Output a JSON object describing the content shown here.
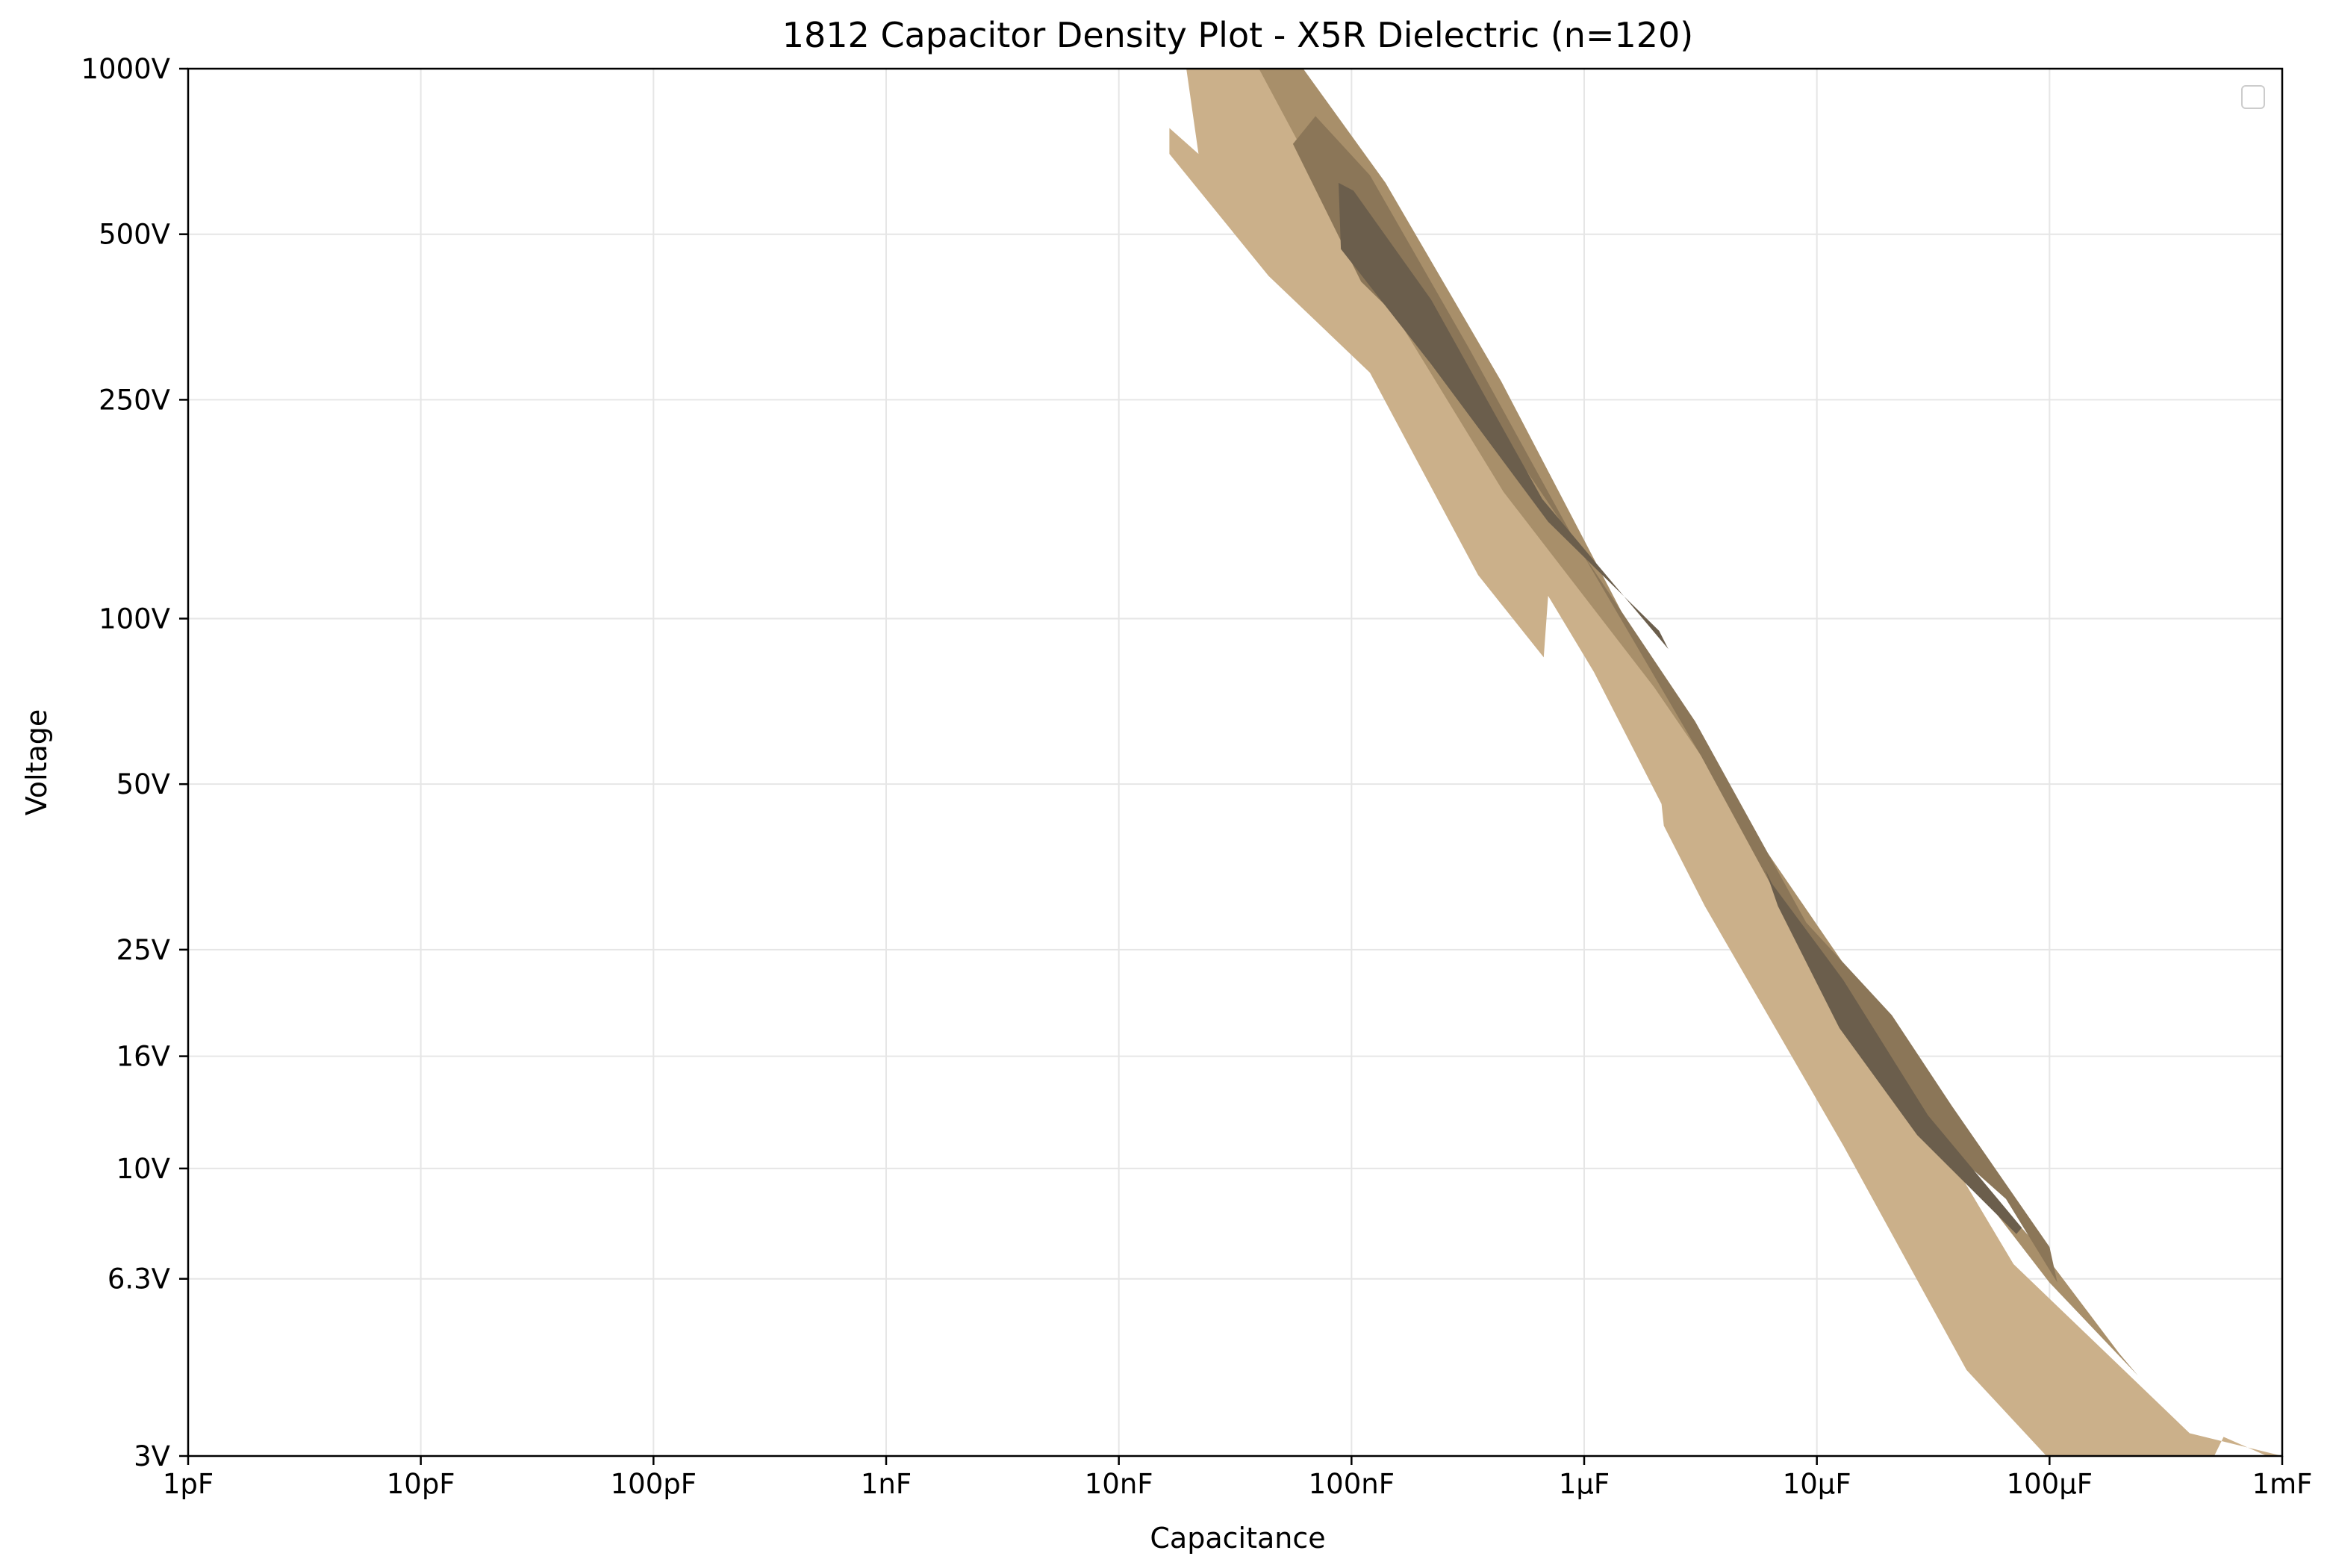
{
  "chart_data": {
    "type": "contour",
    "title": "1812 Capacitor Density Plot - X5R Dielectric (n=120)",
    "xlabel": "Capacitance",
    "ylabel": "Voltage",
    "x_scale": "log",
    "y_scale": "log",
    "x_unit": "F",
    "y_unit": "V",
    "xlim": [
      1e-12,
      0.001
    ],
    "ylim": [
      3,
      1000
    ],
    "x_ticks": [
      {
        "value": 1e-12,
        "label": "1pF"
      },
      {
        "value": 1e-11,
        "label": "10pF"
      },
      {
        "value": 1e-10,
        "label": "100pF"
      },
      {
        "value": 1e-09,
        "label": "1nF"
      },
      {
        "value": 1e-08,
        "label": "10nF"
      },
      {
        "value": 1e-07,
        "label": "100nF"
      },
      {
        "value": 1e-06,
        "label": "1µF"
      },
      {
        "value": 1e-05,
        "label": "10µF"
      },
      {
        "value": 0.0001,
        "label": "100µF"
      },
      {
        "value": 0.001,
        "label": "1mF"
      }
    ],
    "y_ticks": [
      {
        "value": 3,
        "label": "3V"
      },
      {
        "value": 6.3,
        "label": "6.3V"
      },
      {
        "value": 10,
        "label": "10V"
      },
      {
        "value": 16,
        "label": "16V"
      },
      {
        "value": 25,
        "label": "25V"
      },
      {
        "value": 50,
        "label": "50V"
      },
      {
        "value": 100,
        "label": "100V"
      },
      {
        "value": 250,
        "label": "250V"
      },
      {
        "value": 500,
        "label": "500V"
      },
      {
        "value": 1000,
        "label": "1000V"
      }
    ],
    "grid": true,
    "legend": {
      "position": "upper right",
      "entries": []
    },
    "level_colors": [
      "#cbb08a",
      "#a88f6a",
      "#8b7658",
      "#6b5e4c"
    ],
    "density_regions": [
      {
        "level": 1,
        "boundary": [
          [
            1.65e-08,
            780
          ],
          [
            2.2e-08,
            700
          ],
          [
            1.95e-08,
            1000
          ],
          [
            4.4e-08,
            1000
          ],
          [
            9e-08,
            760
          ],
          [
            2.6e-07,
            370
          ],
          [
            1e-06,
            130
          ],
          [
            4e-06,
            50
          ],
          [
            1.5e-05,
            20
          ],
          [
            7e-05,
            6.7
          ],
          [
            0.0004,
            3.3
          ],
          [
            0.001,
            3
          ],
          [
            0.00086,
            3
          ],
          [
            0.00056,
            3.25
          ],
          [
            0.00051,
            3
          ],
          [
            9.7e-05,
            3
          ],
          [
            4.4e-05,
            4.3
          ],
          [
            1.3e-05,
            11
          ],
          [
            3.3e-06,
            30
          ],
          [
            2.2e-06,
            42
          ],
          [
            2.15e-06,
            46
          ],
          [
            1.1e-06,
            80
          ],
          [
            7e-07,
            110
          ],
          [
            6.7e-07,
            85
          ],
          [
            3.5e-07,
            120
          ],
          [
            1.2e-07,
            280
          ],
          [
            4.4e-08,
            420
          ],
          [
            1.65e-08,
            700
          ]
        ]
      },
      {
        "level": 2,
        "boundary": [
          [
            4e-08,
            1000
          ],
          [
            6.2e-08,
            1000
          ],
          [
            1.4e-07,
            620
          ],
          [
            4.4e-07,
            270
          ],
          [
            1.5e-06,
            100
          ],
          [
            4.6e-06,
            43
          ],
          [
            2e-05,
            15
          ],
          [
            0.0001,
            6.2
          ],
          [
            0.00024,
            4.2
          ],
          [
            0.0002,
            4.6
          ],
          [
            9e-05,
            7.2
          ],
          [
            4e-05,
            10.5
          ],
          [
            1.7e-05,
            20
          ],
          [
            2e-06,
            75
          ],
          [
            4.5e-07,
            170
          ],
          [
            1.1e-07,
            450
          ]
        ]
      },
      {
        "level": 3,
        "boundary": [
          [
            5.6e-08,
            730
          ],
          [
            7e-08,
            820
          ],
          [
            1.2e-07,
            640
          ],
          [
            3.2e-07,
            310
          ],
          [
            9e-07,
            140
          ],
          [
            3.2e-06,
            56
          ],
          [
            9e-06,
            25
          ],
          [
            2.3e-05,
            13
          ],
          [
            6.5e-05,
            8.8
          ],
          [
            0.000108,
            6.2
          ],
          [
            0.0001,
            7.2
          ],
          [
            3.8e-05,
            13
          ],
          [
            2.1e-05,
            19
          ],
          [
            9e-06,
            28
          ],
          [
            3e-06,
            65
          ],
          [
            1e-06,
            130
          ],
          [
            3.3e-07,
            260
          ],
          [
            1.1e-07,
            410
          ]
        ]
      },
      {
        "level": 4,
        "boundary": [
          [
            8.8e-08,
            620
          ],
          [
            1.02e-07,
            600
          ],
          [
            2.2e-07,
            380
          ],
          [
            6.6e-07,
            165
          ],
          [
            2.3e-06,
            88
          ],
          [
            2.1e-06,
            95
          ],
          [
            7e-07,
            150
          ],
          [
            2.2e-07,
            290
          ],
          [
            9e-08,
            470
          ]
        ]
      },
      {
        "level": 4,
        "boundary": [
          [
            6e-06,
            35
          ],
          [
            6.4e-06,
            33
          ],
          [
            1.3e-05,
            22
          ],
          [
            3e-05,
            12.5
          ],
          [
            7.6e-05,
            7.8
          ],
          [
            7.2e-05,
            7.6
          ],
          [
            2.7e-05,
            11.5
          ],
          [
            1.25e-05,
            18
          ],
          [
            6.8e-06,
            30
          ]
        ]
      }
    ]
  }
}
